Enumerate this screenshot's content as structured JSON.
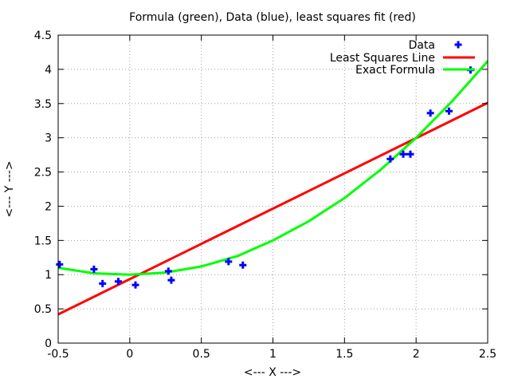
{
  "chart_data": {
    "type": "scatter",
    "title": "Formula (green), Data (blue), least squares fit (red)",
    "xlabel": "<--- X --->",
    "ylabel": "<--- Y --->",
    "xlim": [
      -0.5,
      2.5
    ],
    "ylim": [
      0,
      4.5
    ],
    "xticks": [
      -0.5,
      0,
      0.5,
      1,
      1.5,
      2,
      2.5
    ],
    "xtick_labels": [
      "-0.5",
      "0",
      "0.5",
      "1",
      "1.5",
      "2",
      "2.5"
    ],
    "yticks": [
      0,
      0.5,
      1,
      1.5,
      2,
      2.5,
      3,
      3.5,
      4,
      4.5
    ],
    "ytick_labels": [
      "0",
      "0.5",
      "1",
      "1.5",
      "2",
      "2.5",
      "3",
      "3.5",
      "4",
      "4.5"
    ],
    "grid": true,
    "legend_position": "top-right",
    "series": [
      {
        "name": "Data",
        "kind": "points",
        "color": "#0000ff",
        "x": [
          -0.49,
          -0.25,
          -0.19,
          -0.08,
          0.04,
          0.27,
          0.29,
          0.69,
          0.79,
          1.82,
          1.91,
          1.96,
          2.1,
          2.23,
          2.38
        ],
        "y": [
          1.15,
          1.08,
          0.87,
          0.9,
          0.85,
          1.05,
          0.92,
          1.19,
          1.14,
          2.69,
          2.76,
          2.76,
          3.36,
          3.39,
          3.99
        ]
      },
      {
        "name": "Least Squares Line",
        "kind": "line",
        "color": "#ff0000",
        "x": [
          -0.5,
          2.5
        ],
        "y": [
          0.42,
          3.51
        ]
      },
      {
        "name": "Exact Formula",
        "kind": "line",
        "color": "#00ff00",
        "x": [
          -0.5,
          -0.25,
          0,
          0.25,
          0.5,
          0.75,
          1,
          1.25,
          1.5,
          1.75,
          2,
          2.25,
          2.5
        ],
        "y": [
          1.1,
          1.02,
          1.0,
          1.03,
          1.12,
          1.27,
          1.5,
          1.78,
          2.12,
          2.53,
          3.0,
          3.53,
          4.12
        ]
      }
    ]
  }
}
